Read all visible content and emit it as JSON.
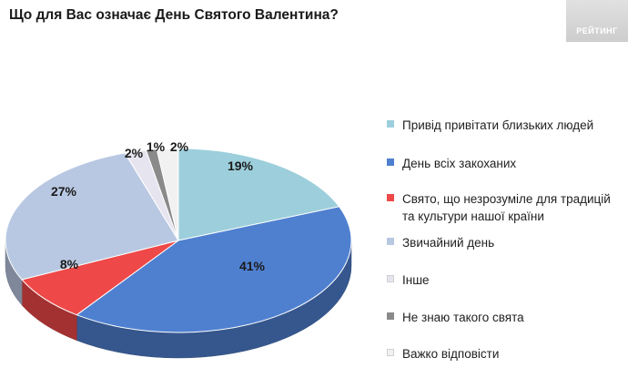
{
  "title": "Що для Вас означає День Святого Валентина?",
  "logo": {
    "text": "РЕЙТИНГ"
  },
  "chart_data": {
    "type": "pie",
    "title": "Що для Вас означає День Святого Валентина?",
    "legend_position": "right",
    "slices": [
      {
        "name": "Привід привітати близьких людей",
        "value": 19,
        "label": "19%",
        "color": "#9ccfdb"
      },
      {
        "name": "День всіх закоханих",
        "value": 41,
        "label": "41%",
        "color": "#4f80d0"
      },
      {
        "name": "Свято, що незрозуміле для традицій та культури нашої країни",
        "value": 8,
        "label": "8%",
        "color": "#ef4848"
      },
      {
        "name": "Звичайний день",
        "value": 27,
        "label": "27%",
        "color": "#b9c8e2"
      },
      {
        "name": "Інше",
        "value": 2,
        "label": "2%",
        "color": "#e6e4ef"
      },
      {
        "name": "Не знаю такого свята",
        "value": 1,
        "label": "1%",
        "color": "#8a8a8a"
      },
      {
        "name": "Важко відповісти",
        "value": 2,
        "label": "2%",
        "color": "#f1f1f1"
      }
    ]
  }
}
